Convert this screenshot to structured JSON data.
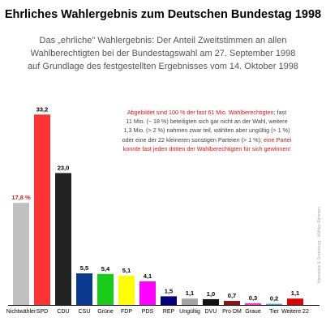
{
  "header": {
    "title": "Ehrliches Wahlergebnis zum Deutschen Bundestag 1998",
    "subtitle_lines": [
      "Das „ehrliche\" Wahlergebnis: Der Anteil Zweitstimmen an allen",
      "Wahlberechtigten bei der Bundestagswahl am 27. September 1998",
      "auf Grundlage des festgestellten Ergebnisses vom 14. Oktober 1998"
    ]
  },
  "annotation": {
    "line1_red": "Abgebildet sind 100 % der fast 61 Mio. Wahlberechtigten",
    "line1_rest": "; fast",
    "line2": "11 Mio. (~ 18 %) beteiligten sich gar nicht an der Wahl, weitere",
    "line3": "1,3 Mio. (> 2 %) nahmen zwar teil, wählten aber ungültig (> 1 %)",
    "line4_plain": "oder eine der 22 kleineren sonstigen Parteien (> 1 %); ",
    "line4_red": "eine Partei",
    "line5_red": "konnte fast jeden dritten der Wahlberechtigten für sich gewinnen!"
  },
  "credit": "Hanseatic & Greenburg · Wähler-Stimmen",
  "chart_data": {
    "type": "bar",
    "title": "Ehrliches Wahlergebnis zum Deutschen Bundestag 1998",
    "categories": [
      "Nichtwähler",
      "SPD",
      "CDU",
      "CSU",
      "Grüne",
      "FDP",
      "PDS",
      "REP",
      "Ungültig",
      "DVU",
      "Pro DM",
      "Graue",
      "Tier",
      "Weitere 22"
    ],
    "values": [
      17.8,
      33.2,
      23.0,
      5.5,
      5.4,
      5.1,
      4.1,
      1.5,
      1.1,
      1.0,
      0.7,
      0.3,
      0.2,
      1.1
    ],
    "value_labels": [
      "17,8 %",
      "33,2",
      "23,0",
      "5,5",
      "5,4",
      "5,1",
      "4,1",
      "1,5",
      "1,1",
      "1,0",
      "0,7",
      "0,3",
      "0,2",
      "1,1"
    ],
    "highlight_label_index": 0,
    "colors": [
      "#c0c0c0",
      "#ff3333",
      "#222222",
      "#0a3a8f",
      "#19cc19",
      "#ffff00",
      "#ff00ff",
      "#00007a",
      "#a3a3a3",
      "#111111",
      "#8b1010",
      "#ff33cc",
      "#3ab3c8",
      "#dd0000"
    ],
    "ylim": [
      0,
      34
    ],
    "xlabel": "",
    "ylabel": "",
    "grid": false,
    "legend": "none"
  }
}
